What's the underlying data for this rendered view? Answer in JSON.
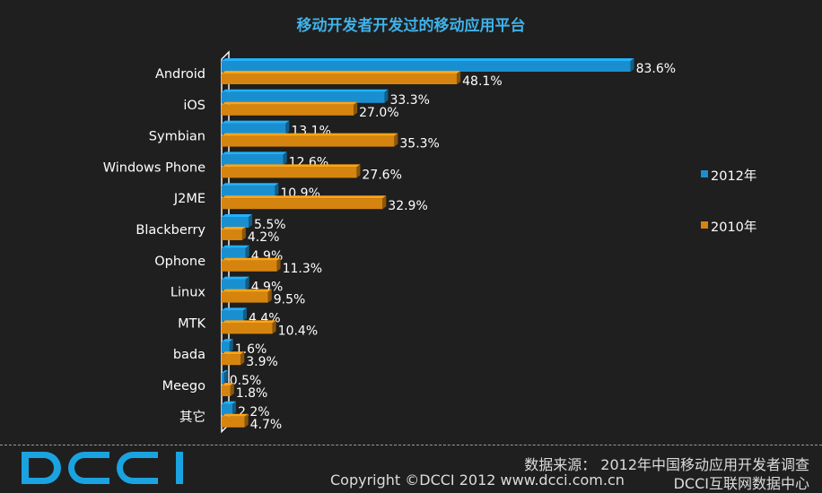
{
  "chart_data": {
    "type": "bar",
    "orientation": "horizontal",
    "title": "移动开发者开发过的移动应用平台",
    "categories": [
      "Android",
      "iOS",
      "Symbian",
      "Windows Phone",
      "J2ME",
      "Blackberry",
      "Ophone",
      "Linux",
      "MTK",
      "bada",
      "Meego",
      "其它"
    ],
    "series": [
      {
        "name": "2012年",
        "color": "#1a8fd0",
        "values": [
          83.6,
          33.3,
          13.1,
          12.6,
          10.9,
          5.5,
          4.9,
          4.9,
          4.4,
          1.6,
          0.5,
          2.2
        ]
      },
      {
        "name": "2010年",
        "color": "#d68410",
        "values": [
          48.1,
          27.0,
          35.3,
          27.6,
          32.9,
          4.2,
          11.3,
          9.5,
          10.4,
          3.9,
          1.8,
          4.7
        ]
      }
    ],
    "value_labels": {
      "2012年": [
        "83.6%",
        "33.3%",
        "13.1%",
        "12.6%",
        "10.9%",
        "5.5%",
        "4.9%",
        "4.9%",
        "4.4%",
        "1.6%",
        "0.5%",
        "2.2%"
      ],
      "2010年": [
        "48.1%",
        "27.0%",
        "35.3%",
        "27.6%",
        "32.9%",
        "4.2%",
        "11.3%",
        "9.5%",
        "10.4%",
        "3.9%",
        "1.8%",
        "4.7%"
      ]
    },
    "value_suffix": "%",
    "legend_position": "right",
    "grid": false
  },
  "footer": {
    "logo_text": "DCCI",
    "source": "数据来源： 2012年中国移动应用开发者调查",
    "copyright": "Copyright ©DCCI 2012 www.dcci.com.cn",
    "center_name": "DCCI互联网数据中心"
  },
  "colors": {
    "background": "#1f1f1f",
    "title": "#3fb2ea",
    "logo": "#1aa3e0"
  }
}
